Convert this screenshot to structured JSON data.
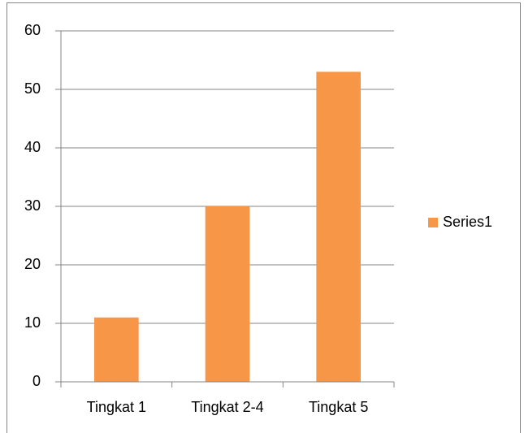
{
  "chart_data": {
    "type": "bar",
    "categories": [
      "Tingkat 1",
      "Tingkat 2-4",
      "Tingkat 5"
    ],
    "series": [
      {
        "name": "Series1",
        "color": "#f79646",
        "values": [
          11,
          30,
          53
        ]
      }
    ],
    "ylim": [
      0,
      60
    ],
    "yticks": [
      0,
      10,
      20,
      30,
      40,
      50,
      60
    ],
    "grid": true,
    "legend": "right"
  }
}
